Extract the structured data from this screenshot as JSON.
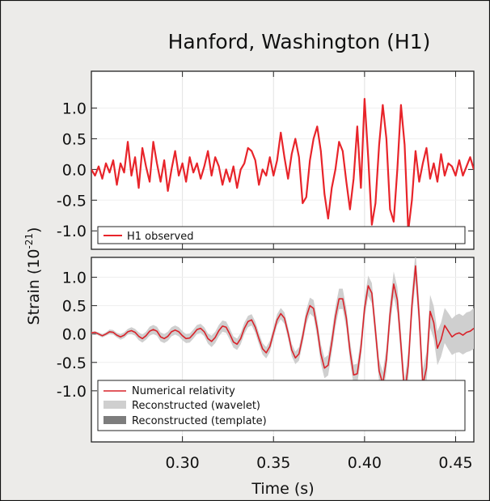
{
  "colors": {
    "background": "#ecebe9",
    "observed": "#e8242a",
    "numerical": "#d9232a",
    "wavelet_band": "#cfcfcf",
    "template_band": "#7d7d7d"
  },
  "chart_data": [
    {
      "type": "line",
      "title": "Hanford, Washington (H1)",
      "ylabel_base": "Strain (10",
      "ylabel_exp": "-21",
      "ylabel_close": ")",
      "xlim": [
        0.25,
        0.46
      ],
      "ylim": [
        -1.3,
        1.6
      ],
      "yticks": [
        1.0,
        0.5,
        0.0,
        -0.5,
        -1.0
      ],
      "ytick_labels": [
        "1.0",
        "0.5",
        "0.0",
        "-0.5",
        "-1.0"
      ],
      "legend_position": "bottom",
      "series": [
        {
          "name": "H1 observed",
          "color": "#e8242a",
          "x": [
            0.25,
            0.252,
            0.254,
            0.256,
            0.258,
            0.26,
            0.262,
            0.264,
            0.266,
            0.268,
            0.27,
            0.272,
            0.274,
            0.276,
            0.278,
            0.28,
            0.282,
            0.284,
            0.286,
            0.288,
            0.29,
            0.292,
            0.294,
            0.296,
            0.298,
            0.3,
            0.302,
            0.304,
            0.306,
            0.308,
            0.31,
            0.312,
            0.314,
            0.316,
            0.318,
            0.32,
            0.322,
            0.324,
            0.326,
            0.328,
            0.33,
            0.332,
            0.334,
            0.336,
            0.338,
            0.34,
            0.342,
            0.344,
            0.346,
            0.348,
            0.35,
            0.352,
            0.354,
            0.356,
            0.358,
            0.36,
            0.362,
            0.364,
            0.366,
            0.368,
            0.37,
            0.372,
            0.374,
            0.376,
            0.378,
            0.38,
            0.382,
            0.384,
            0.386,
            0.388,
            0.39,
            0.392,
            0.394,
            0.396,
            0.398,
            0.4,
            0.402,
            0.404,
            0.406,
            0.408,
            0.41,
            0.412,
            0.414,
            0.416,
            0.418,
            0.42,
            0.422,
            0.424,
            0.426,
            0.428,
            0.43,
            0.432,
            0.434,
            0.436,
            0.438,
            0.44,
            0.442,
            0.444,
            0.446,
            0.448,
            0.45,
            0.452,
            0.454,
            0.456,
            0.458,
            0.46
          ],
          "y": [
            0.0,
            -0.1,
            0.05,
            -0.15,
            0.1,
            -0.05,
            0.15,
            -0.25,
            0.1,
            -0.05,
            0.45,
            -0.1,
            0.2,
            -0.3,
            0.35,
            0.05,
            -0.2,
            0.45,
            0.1,
            -0.2,
            0.15,
            -0.35,
            0.0,
            0.3,
            -0.1,
            0.1,
            -0.2,
            0.2,
            -0.05,
            0.1,
            -0.15,
            0.05,
            0.3,
            -0.1,
            0.2,
            0.05,
            -0.25,
            0.0,
            -0.2,
            0.05,
            -0.3,
            0.0,
            0.1,
            0.35,
            0.3,
            0.15,
            -0.25,
            0.0,
            -0.1,
            0.2,
            -0.1,
            0.15,
            0.6,
            0.2,
            -0.15,
            0.25,
            0.5,
            0.2,
            -0.55,
            -0.45,
            0.15,
            0.5,
            0.7,
            0.3,
            -0.4,
            -0.8,
            -0.3,
            0.0,
            0.45,
            0.3,
            -0.2,
            -0.65,
            -0.15,
            0.7,
            -0.3,
            1.15,
            0.2,
            -0.9,
            -0.55,
            0.4,
            1.05,
            0.5,
            -0.65,
            -0.85,
            0.0,
            1.05,
            0.4,
            -1.0,
            -0.5,
            0.3,
            -0.2,
            0.1,
            0.35,
            -0.15,
            0.1,
            -0.2,
            0.25,
            -0.1,
            0.1,
            0.05,
            -0.1,
            0.15,
            -0.1,
            0.05,
            0.2,
            0.0
          ]
        }
      ]
    },
    {
      "type": "line",
      "xlim": [
        0.25,
        0.46
      ],
      "ylim": [
        -1.9,
        1.35
      ],
      "yticks": [
        1.0,
        0.5,
        0.0,
        -0.5,
        -1.0
      ],
      "ytick_labels": [
        "1.0",
        "0.5",
        "0.0",
        "-0.5",
        "-1.0"
      ],
      "xticks": [
        0.3,
        0.35,
        0.4,
        0.45
      ],
      "xtick_labels": [
        "0.30",
        "0.35",
        "0.40",
        "0.45"
      ],
      "xlabel": "Time (s)",
      "legend_position": "bottom",
      "series": [
        {
          "name": "Numerical relativity",
          "color": "#d9232a",
          "x": [
            0.25,
            0.252,
            0.254,
            0.256,
            0.258,
            0.26,
            0.262,
            0.264,
            0.266,
            0.268,
            0.27,
            0.272,
            0.274,
            0.276,
            0.278,
            0.28,
            0.282,
            0.284,
            0.286,
            0.288,
            0.29,
            0.292,
            0.294,
            0.296,
            0.298,
            0.3,
            0.302,
            0.304,
            0.306,
            0.308,
            0.31,
            0.312,
            0.314,
            0.316,
            0.318,
            0.32,
            0.322,
            0.324,
            0.326,
            0.328,
            0.33,
            0.332,
            0.334,
            0.336,
            0.338,
            0.34,
            0.342,
            0.344,
            0.346,
            0.348,
            0.35,
            0.352,
            0.354,
            0.356,
            0.358,
            0.36,
            0.362,
            0.364,
            0.366,
            0.368,
            0.37,
            0.372,
            0.374,
            0.376,
            0.378,
            0.38,
            0.382,
            0.384,
            0.386,
            0.388,
            0.39,
            0.392,
            0.394,
            0.396,
            0.398,
            0.4,
            0.402,
            0.404,
            0.406,
            0.408,
            0.41,
            0.412,
            0.414,
            0.416,
            0.418,
            0.42,
            0.422,
            0.424,
            0.426,
            0.428,
            0.43,
            0.432,
            0.434,
            0.436,
            0.438,
            0.44,
            0.442,
            0.444,
            0.446,
            0.448,
            0.45,
            0.452,
            0.454,
            0.456,
            0.458,
            0.46
          ],
          "y": [
            0.02,
            0.03,
            0.0,
            -0.03,
            0.0,
            0.04,
            0.03,
            -0.02,
            -0.05,
            -0.02,
            0.04,
            0.06,
            0.03,
            -0.04,
            -0.08,
            -0.03,
            0.05,
            0.08,
            0.05,
            -0.05,
            -0.08,
            -0.04,
            0.04,
            0.07,
            0.04,
            -0.03,
            -0.08,
            -0.07,
            0.0,
            0.08,
            0.1,
            0.04,
            -0.08,
            -0.13,
            -0.06,
            0.06,
            0.14,
            0.12,
            0.0,
            -0.14,
            -0.18,
            -0.08,
            0.1,
            0.22,
            0.25,
            0.12,
            -0.08,
            -0.26,
            -0.33,
            -0.22,
            0.02,
            0.25,
            0.36,
            0.28,
            0.02,
            -0.28,
            -0.42,
            -0.35,
            -0.05,
            0.3,
            0.5,
            0.45,
            0.1,
            -0.35,
            -0.6,
            -0.55,
            -0.15,
            0.3,
            0.62,
            0.62,
            0.28,
            -0.3,
            -0.72,
            -0.7,
            -0.25,
            0.45,
            0.85,
            0.72,
            0.05,
            -0.65,
            -0.88,
            -0.45,
            0.35,
            0.88,
            0.6,
            -0.2,
            -1.05,
            -0.55,
            0.5,
            1.2,
            0.3,
            -0.9,
            -0.6,
            0.4,
            0.2,
            -0.25,
            -0.1,
            0.15,
            0.05,
            -0.05,
            0.0,
            0.02,
            -0.02,
            0.03,
            0.05,
            0.1
          ]
        },
        {
          "name": "Reconstructed (wavelet)",
          "color": "#cfcfcf",
          "band": true,
          "halfwidth": [
            0.02,
            0.02,
            0.03,
            0.03,
            0.03,
            0.04,
            0.04,
            0.04,
            0.05,
            0.05,
            0.05,
            0.06,
            0.06,
            0.07,
            0.07,
            0.07,
            0.08,
            0.08,
            0.08,
            0.08,
            0.08,
            0.08,
            0.08,
            0.08,
            0.08,
            0.08,
            0.08,
            0.08,
            0.08,
            0.08,
            0.08,
            0.08,
            0.09,
            0.1,
            0.1,
            0.1,
            0.1,
            0.1,
            0.1,
            0.1,
            0.1,
            0.1,
            0.1,
            0.1,
            0.1,
            0.1,
            0.1,
            0.1,
            0.1,
            0.1,
            0.1,
            0.1,
            0.1,
            0.1,
            0.1,
            0.11,
            0.11,
            0.12,
            0.12,
            0.13,
            0.14,
            0.15,
            0.16,
            0.17,
            0.18,
            0.18,
            0.18,
            0.18,
            0.18,
            0.18,
            0.18,
            0.18,
            0.18,
            0.18,
            0.18,
            0.18,
            0.18,
            0.18,
            0.19,
            0.2,
            0.21,
            0.21,
            0.22,
            0.22,
            0.23,
            0.24,
            0.24,
            0.25,
            0.25,
            0.26,
            0.27,
            0.28,
            0.28,
            0.29,
            0.29,
            0.3,
            0.3,
            0.31,
            0.32,
            0.32,
            0.33,
            0.34,
            0.34,
            0.35,
            0.35,
            0.36
          ]
        },
        {
          "name": "Reconstructed (template)",
          "color": "#7d7d7d",
          "band": true,
          "halfwidth": [
            0.01,
            0.01,
            0.01,
            0.01,
            0.01,
            0.01,
            0.01,
            0.02,
            0.02,
            0.02,
            0.02,
            0.02,
            0.02,
            0.02,
            0.02,
            0.02,
            0.02,
            0.02,
            0.02,
            0.02,
            0.02,
            0.02,
            0.02,
            0.02,
            0.02,
            0.02,
            0.02,
            0.02,
            0.02,
            0.02,
            0.02,
            0.02,
            0.03,
            0.03,
            0.03,
            0.03,
            0.03,
            0.03,
            0.03,
            0.03,
            0.03,
            0.03,
            0.03,
            0.03,
            0.03,
            0.03,
            0.03,
            0.03,
            0.03,
            0.03,
            0.03,
            0.03,
            0.03,
            0.03,
            0.03,
            0.04,
            0.04,
            0.04,
            0.04,
            0.04,
            0.04,
            0.04,
            0.04,
            0.04,
            0.04,
            0.04,
            0.04,
            0.04,
            0.04,
            0.04,
            0.04,
            0.04,
            0.04,
            0.04,
            0.04,
            0.04,
            0.04,
            0.04,
            0.05,
            0.05,
            0.05,
            0.05,
            0.05,
            0.05,
            0.05,
            0.05,
            0.05,
            0.05,
            0.05,
            0.05,
            0.05,
            0.05,
            0.05,
            0.05,
            0.05,
            0.05,
            0.05,
            0.05,
            0.05,
            0.05,
            0.05,
            0.05,
            0.05,
            0.05,
            0.05,
            0.05
          ]
        }
      ]
    }
  ]
}
